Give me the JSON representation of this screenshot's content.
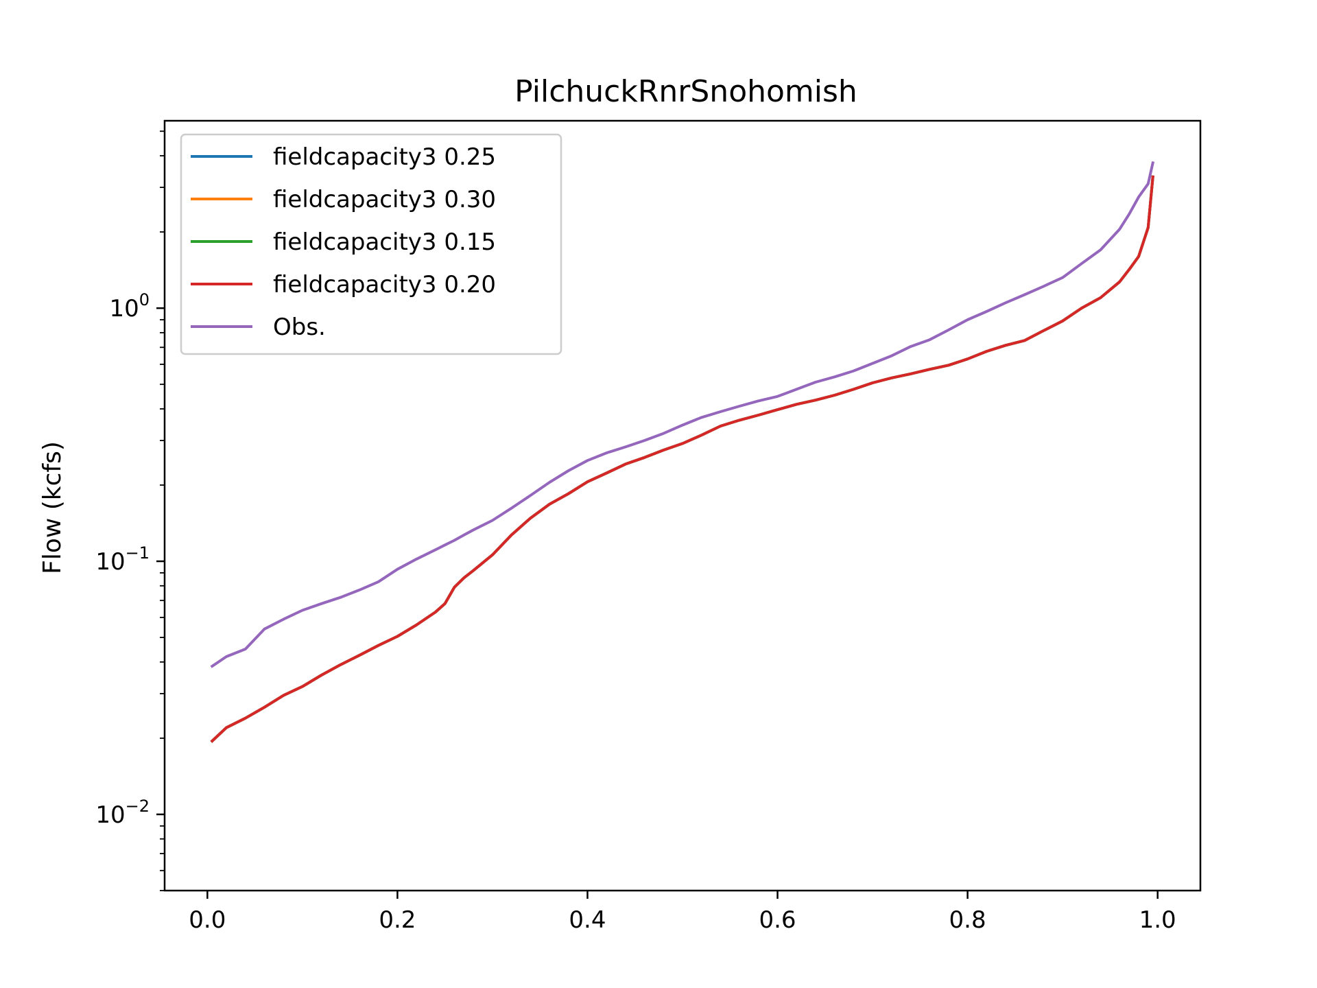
{
  "chart_data": {
    "type": "line",
    "title": "PilchuckRnrSnohomish",
    "xlabel": "",
    "ylabel": "Flow (kcfs)",
    "xlim": [
      -0.045,
      1.045
    ],
    "ylim": [
      0.005,
      5.5
    ],
    "yscale": "log",
    "grid": false,
    "legend_position": "upper-left",
    "xticks": [
      0.0,
      0.2,
      0.4,
      0.6,
      0.8,
      1.0
    ],
    "xtick_labels": [
      "0.0",
      "0.2",
      "0.4",
      "0.6",
      "0.8",
      "1.0"
    ],
    "yticks": [
      {
        "value": 1,
        "base": "10",
        "exp": "0"
      },
      {
        "value": 0.1,
        "base": "10",
        "exp": "−1"
      },
      {
        "value": 0.01,
        "base": "10",
        "exp": "−2"
      }
    ],
    "x": [
      0.005,
      0.02,
      0.04,
      0.06,
      0.08,
      0.1,
      0.12,
      0.14,
      0.16,
      0.18,
      0.2,
      0.22,
      0.24,
      0.25,
      0.26,
      0.27,
      0.28,
      0.3,
      0.32,
      0.34,
      0.36,
      0.38,
      0.4,
      0.42,
      0.44,
      0.46,
      0.48,
      0.5,
      0.52,
      0.54,
      0.56,
      0.58,
      0.6,
      0.62,
      0.64,
      0.66,
      0.68,
      0.7,
      0.72,
      0.74,
      0.76,
      0.78,
      0.8,
      0.82,
      0.84,
      0.86,
      0.88,
      0.9,
      0.92,
      0.94,
      0.96,
      0.97,
      0.98,
      0.99,
      0.995
    ],
    "series": [
      {
        "name": "fieldcapacity3 0.25",
        "color": "#1f77b4",
        "values": [
          0.0195,
          0.022,
          0.024,
          0.0265,
          0.0295,
          0.032,
          0.0355,
          0.039,
          0.0425,
          0.0465,
          0.0505,
          0.056,
          0.063,
          0.068,
          0.079,
          0.086,
          0.092,
          0.106,
          0.127,
          0.148,
          0.168,
          0.185,
          0.206,
          0.223,
          0.242,
          0.257,
          0.275,
          0.292,
          0.315,
          0.342,
          0.361,
          0.378,
          0.397,
          0.417,
          0.433,
          0.453,
          0.478,
          0.507,
          0.53,
          0.55,
          0.573,
          0.595,
          0.63,
          0.675,
          0.713,
          0.745,
          0.815,
          0.89,
          1.0,
          1.1,
          1.27,
          1.42,
          1.6,
          2.08,
          3.3
        ]
      },
      {
        "name": "fieldcapacity3 0.30",
        "color": "#ff7f0e",
        "values": [
          0.0195,
          0.022,
          0.024,
          0.0265,
          0.0295,
          0.032,
          0.0355,
          0.039,
          0.0425,
          0.0465,
          0.0505,
          0.056,
          0.063,
          0.068,
          0.079,
          0.086,
          0.092,
          0.106,
          0.127,
          0.148,
          0.168,
          0.185,
          0.206,
          0.223,
          0.242,
          0.257,
          0.275,
          0.292,
          0.315,
          0.342,
          0.361,
          0.378,
          0.397,
          0.417,
          0.433,
          0.453,
          0.478,
          0.507,
          0.53,
          0.55,
          0.573,
          0.595,
          0.63,
          0.675,
          0.713,
          0.745,
          0.815,
          0.89,
          1.0,
          1.1,
          1.27,
          1.42,
          1.6,
          2.08,
          3.3
        ]
      },
      {
        "name": "fieldcapacity3 0.15",
        "color": "#2ca02c",
        "values": [
          0.0195,
          0.022,
          0.024,
          0.0265,
          0.0295,
          0.032,
          0.0355,
          0.039,
          0.0425,
          0.0465,
          0.0505,
          0.056,
          0.063,
          0.068,
          0.079,
          0.086,
          0.092,
          0.106,
          0.127,
          0.148,
          0.168,
          0.185,
          0.206,
          0.223,
          0.242,
          0.257,
          0.275,
          0.292,
          0.315,
          0.342,
          0.361,
          0.378,
          0.397,
          0.417,
          0.433,
          0.453,
          0.478,
          0.507,
          0.53,
          0.55,
          0.573,
          0.595,
          0.63,
          0.675,
          0.713,
          0.745,
          0.815,
          0.89,
          1.0,
          1.1,
          1.27,
          1.42,
          1.6,
          2.08,
          3.3
        ]
      },
      {
        "name": "fieldcapacity3 0.20",
        "color": "#d62728",
        "values": [
          0.0195,
          0.022,
          0.024,
          0.0265,
          0.0295,
          0.032,
          0.0355,
          0.039,
          0.0425,
          0.0465,
          0.0505,
          0.056,
          0.063,
          0.068,
          0.079,
          0.086,
          0.092,
          0.106,
          0.127,
          0.148,
          0.168,
          0.185,
          0.206,
          0.223,
          0.242,
          0.257,
          0.275,
          0.292,
          0.315,
          0.342,
          0.361,
          0.378,
          0.397,
          0.417,
          0.433,
          0.453,
          0.478,
          0.507,
          0.53,
          0.55,
          0.573,
          0.595,
          0.63,
          0.675,
          0.713,
          0.745,
          0.815,
          0.89,
          1.0,
          1.1,
          1.27,
          1.42,
          1.6,
          2.08,
          3.3
        ]
      },
      {
        "name": "Obs.",
        "color": "#9467bd",
        "values": [
          0.0385,
          0.042,
          0.045,
          0.054,
          0.059,
          0.064,
          0.068,
          0.072,
          0.077,
          0.083,
          0.093,
          0.102,
          0.111,
          0.116,
          0.121,
          0.127,
          0.133,
          0.145,
          0.162,
          0.182,
          0.205,
          0.228,
          0.25,
          0.268,
          0.283,
          0.3,
          0.32,
          0.345,
          0.37,
          0.39,
          0.41,
          0.43,
          0.448,
          0.478,
          0.51,
          0.535,
          0.565,
          0.605,
          0.648,
          0.705,
          0.75,
          0.82,
          0.9,
          0.97,
          1.05,
          1.13,
          1.22,
          1.32,
          1.5,
          1.7,
          2.05,
          2.35,
          2.75,
          3.1,
          3.75
        ]
      }
    ]
  }
}
